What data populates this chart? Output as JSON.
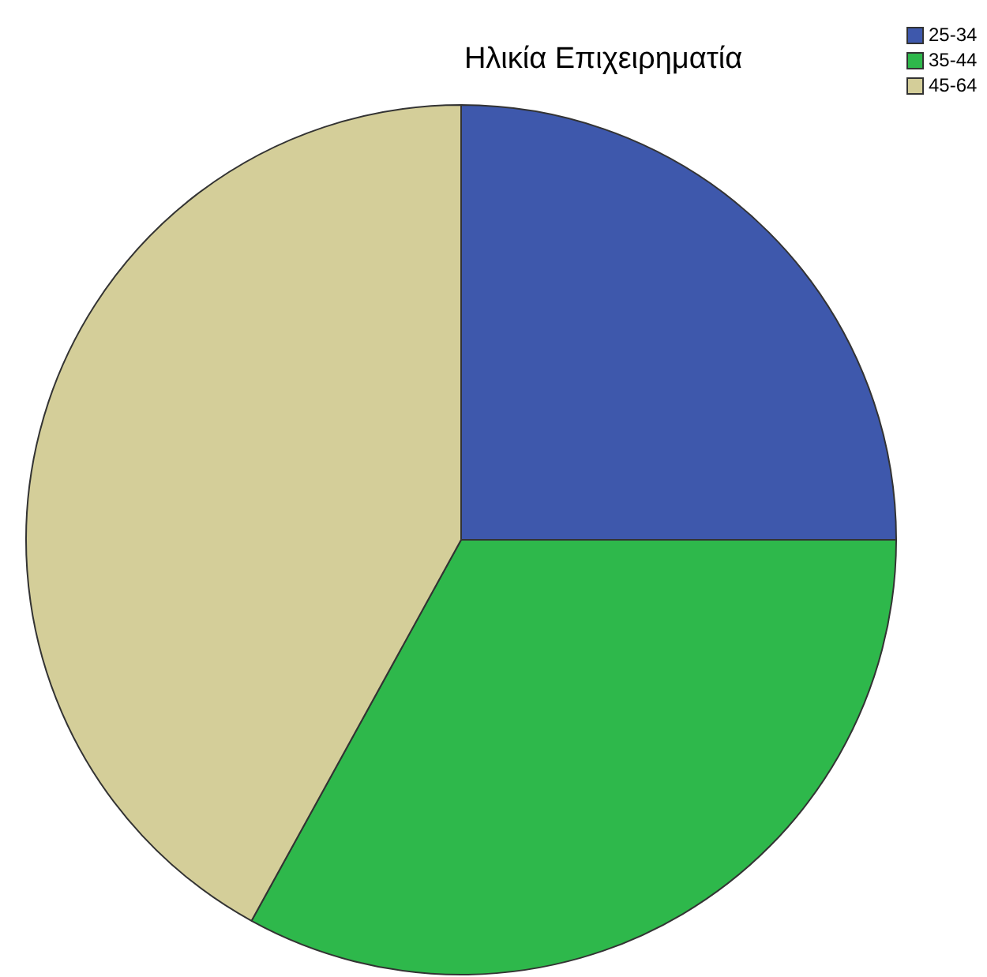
{
  "chart_data": {
    "type": "pie",
    "title": "Ηλικία Επιχειρηματία",
    "categories": [
      "25-34",
      "35-44",
      "45-64"
    ],
    "values": [
      25,
      33,
      42
    ],
    "colors": [
      "#3e58ac",
      "#2eb84b",
      "#d4ce99"
    ],
    "legend": "top right"
  }
}
